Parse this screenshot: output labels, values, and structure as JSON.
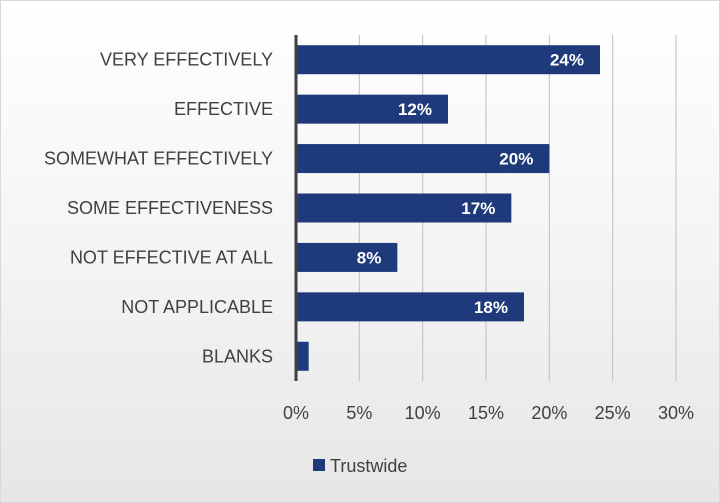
{
  "colors": {
    "bar": "#1f3a7a",
    "grid": "#bfbfbf",
    "axis": "#404040",
    "data_label": "#ffffff",
    "text": "#404040"
  },
  "chart_data": {
    "type": "bar",
    "orientation": "horizontal",
    "categories": [
      "VERY EFFECTIVELY",
      "EFFECTIVE",
      "SOMEWHAT EFFECTIVELY",
      "SOME EFFECTIVENESS",
      "NOT EFFECTIVE AT ALL",
      "NOT APPLICABLE",
      "BLANKS"
    ],
    "series": [
      {
        "name": "Trustwide",
        "values": [
          24,
          12,
          20,
          17,
          8,
          18,
          1
        ],
        "data_labels": [
          "24%",
          "12%",
          "20%",
          "17%",
          "8%",
          "18%",
          ""
        ]
      }
    ],
    "xlim": [
      0,
      30
    ],
    "x_ticks": [
      0,
      5,
      10,
      15,
      20,
      25,
      30
    ],
    "x_tick_labels": [
      "0%",
      "5%",
      "10%",
      "15%",
      "20%",
      "25%",
      "30%"
    ],
    "title": "",
    "xlabel": "",
    "ylabel": "",
    "grid": true,
    "legend_position": "bottom"
  }
}
